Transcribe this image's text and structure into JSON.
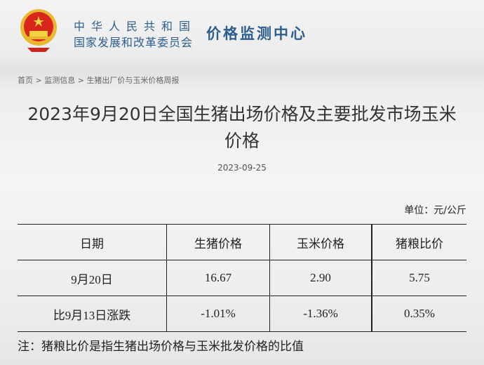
{
  "header": {
    "org_line1": "中华人民共和国",
    "org_line2": "国家发展和改革委员会",
    "center_name": "价格监测中心",
    "emblem": "national-emblem"
  },
  "breadcrumb": [
    {
      "label": "首页"
    },
    {
      "label": "监测信息"
    },
    {
      "label": "生猪出厂价与玉米价格周报"
    }
  ],
  "breadcrumb_sep": ">",
  "article": {
    "title": "2023年9月20日全国生猪出场价格及主要批发市场玉米价格",
    "date": "2023-09-25",
    "unit": "单位：元/公斤",
    "table": {
      "headers": [
        "日期",
        "生猪价格",
        "玉米价格",
        "猪粮比价"
      ],
      "rows": [
        [
          "9月20日",
          "16.67",
          "2.90",
          "5.75"
        ],
        [
          "比9月13日涨跌",
          "-1.01%",
          "-1.36%",
          "0.35%"
        ]
      ]
    },
    "note": "注：猪粮比价是指生猪出场价格与玉米批发价格的比值"
  }
}
